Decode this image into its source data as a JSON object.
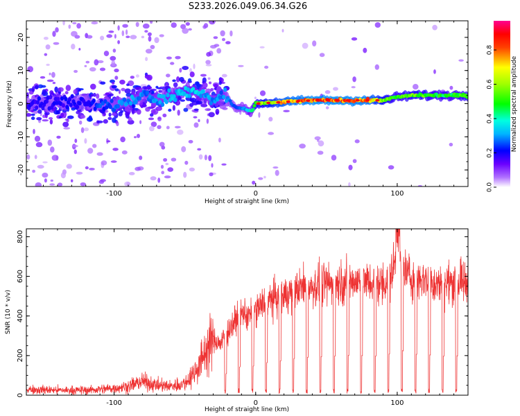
{
  "title": "S233.2026.049.06.34.G26",
  "chart_data": [
    {
      "type": "heatmap",
      "name": "spectrogram",
      "xlabel": "Height of straight line (km)",
      "ylabel": "Frequency (Hz)",
      "xlim": [
        -162,
        150
      ],
      "ylim": [
        -25,
        25
      ],
      "x_ticks": [
        -100,
        0,
        100
      ],
      "y_ticks": [
        -20,
        -10,
        0,
        10,
        20
      ],
      "colorbar": {
        "label": "Normalized spectral amplitude",
        "range": [
          0.0,
          0.97
        ],
        "ticks": [
          0.0,
          0.2,
          0.4,
          0.6,
          0.8
        ],
        "tick_labels": [
          "0.0",
          "0.2",
          "0.4",
          "0.6",
          "0.8"
        ],
        "colormap": [
          "#ffffff",
          "#7a00ff",
          "#0000ff",
          "#00e5ff",
          "#00ff00",
          "#ffff00",
          "#ff0000",
          "#ff0080"
        ]
      },
      "ridge": {
        "x": [
          -162,
          -140,
          -120,
          -100,
          -90,
          -80,
          -70,
          -60,
          -50,
          -40,
          -30,
          -22,
          -15,
          -8,
          -3,
          0,
          20,
          40,
          60,
          80,
          90,
          100,
          110,
          120,
          130,
          140,
          150
        ],
        "frequency_hz": [
          0.5,
          0.5,
          0.5,
          -0.5,
          0.0,
          3.0,
          0.5,
          2.5,
          4.0,
          3.5,
          0.5,
          3.0,
          -1.0,
          -1.5,
          -2.5,
          0.0,
          0.5,
          1.0,
          1.0,
          1.0,
          1.0,
          2.0,
          2.5,
          2.5,
          2.5,
          2.5,
          2.5
        ],
        "amplitude": [
          0.2,
          0.2,
          0.22,
          0.28,
          0.32,
          0.3,
          0.3,
          0.35,
          0.35,
          0.35,
          0.3,
          0.3,
          0.25,
          0.3,
          0.4,
          0.55,
          0.78,
          0.85,
          0.85,
          0.82,
          0.62,
          0.5,
          0.58,
          0.55,
          0.5,
          0.5,
          0.55
        ]
      }
    },
    {
      "type": "line",
      "name": "snr",
      "xlabel": "Height of straight line (km)",
      "ylabel": "SNR (10 * v/v)",
      "xlim": [
        -162,
        150
      ],
      "ylim": [
        0,
        840
      ],
      "x_ticks": [
        -100,
        0,
        100
      ],
      "y_ticks": [
        0,
        200,
        400,
        600,
        800
      ],
      "series": [
        {
          "name": "SNR",
          "color": "#ee3333",
          "x": [
            -162,
            -140,
            -120,
            -100,
            -90,
            -80,
            -70,
            -60,
            -50,
            -45,
            -40,
            -35,
            -30,
            -25,
            -20,
            -15,
            -10,
            -5,
            0,
            10,
            20,
            30,
            40,
            50,
            60,
            70,
            80,
            90,
            95,
            100,
            102,
            110,
            120,
            130,
            140,
            150
          ],
          "y": [
            30,
            25,
            25,
            35,
            45,
            70,
            50,
            45,
            60,
            100,
            150,
            230,
            280,
            260,
            320,
            370,
            420,
            400,
            430,
            480,
            500,
            540,
            550,
            560,
            570,
            575,
            570,
            560,
            600,
            700,
            660,
            590,
            590,
            560,
            570,
            560
          ]
        }
      ],
      "annotations": {
        "periodic_dropouts": "sharp drops to near zero roughly every 10 km from -20 km onward"
      }
    }
  ]
}
